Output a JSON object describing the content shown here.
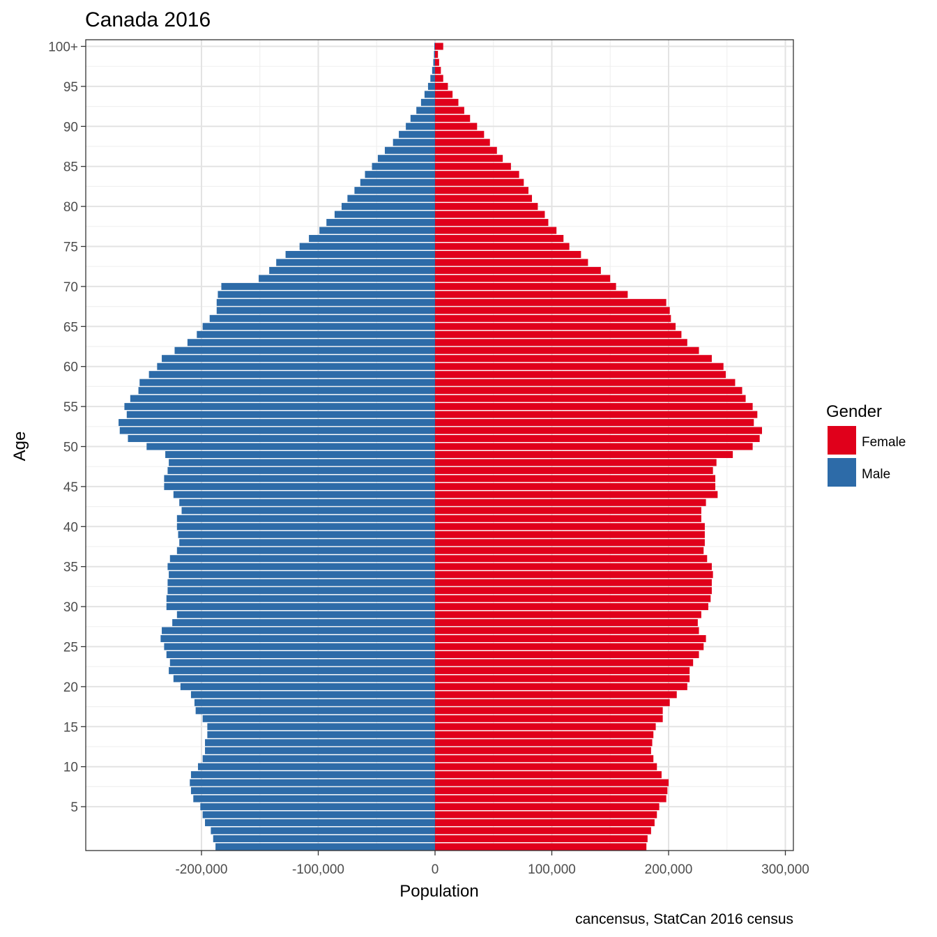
{
  "chart_data": {
    "type": "bar",
    "orientation": "horizontal",
    "title": "Canada 2016",
    "xlabel": "Population",
    "ylabel": "Age",
    "caption": "cancensus, StatCan 2016 census",
    "xlim": [
      -290000,
      310000
    ],
    "x_ticks": [
      -200000,
      -100000,
      0,
      100000,
      200000,
      300000
    ],
    "x_tick_labels": [
      "-200,000",
      "-100,000",
      "0",
      "100,000",
      "200,000",
      "300,000"
    ],
    "y_ticks": [
      5,
      10,
      15,
      20,
      25,
      30,
      35,
      40,
      45,
      50,
      55,
      60,
      65,
      70,
      75,
      80,
      85,
      90,
      95,
      100
    ],
    "y_tick_labels": [
      "5",
      "10",
      "15",
      "20",
      "25",
      "30",
      "35",
      "40",
      "45",
      "50",
      "55",
      "60",
      "65",
      "70",
      "75",
      "80",
      "85",
      "90",
      "95",
      "100+"
    ],
    "grid": true,
    "legend": {
      "title": "Gender",
      "position": "right",
      "entries": [
        "Female",
        "Male"
      ]
    },
    "categories": [
      0,
      1,
      2,
      3,
      4,
      5,
      6,
      7,
      8,
      9,
      10,
      11,
      12,
      13,
      14,
      15,
      16,
      17,
      18,
      19,
      20,
      21,
      22,
      23,
      24,
      25,
      26,
      27,
      28,
      29,
      30,
      31,
      32,
      33,
      34,
      35,
      36,
      37,
      38,
      39,
      40,
      41,
      42,
      43,
      44,
      45,
      46,
      47,
      48,
      49,
      50,
      51,
      52,
      53,
      54,
      55,
      56,
      57,
      58,
      59,
      60,
      61,
      62,
      63,
      64,
      65,
      66,
      67,
      68,
      69,
      70,
      71,
      72,
      73,
      74,
      75,
      76,
      77,
      78,
      79,
      80,
      81,
      82,
      83,
      84,
      85,
      86,
      87,
      88,
      89,
      90,
      91,
      92,
      93,
      94,
      95,
      96,
      97,
      98,
      99,
      100
    ],
    "series": [
      {
        "name": "Female",
        "color": "#e0001b",
        "values": [
          181000,
          182000,
          185000,
          188000,
          190000,
          192000,
          198000,
          199000,
          200000,
          194000,
          190000,
          187000,
          185000,
          186000,
          187000,
          189000,
          195000,
          195000,
          201000,
          207000,
          216000,
          218000,
          218000,
          221000,
          226000,
          230000,
          232000,
          226000,
          225000,
          228000,
          234000,
          236000,
          237000,
          237000,
          238000,
          237000,
          233000,
          230000,
          231000,
          231000,
          231000,
          228000,
          228000,
          232000,
          242000,
          240000,
          240000,
          238000,
          241000,
          255000,
          272000,
          278000,
          280000,
          273000,
          276000,
          272000,
          266000,
          263000,
          257000,
          249000,
          247000,
          237000,
          226000,
          216000,
          211000,
          206000,
          202000,
          201000,
          198000,
          165000,
          155000,
          150000,
          142000,
          131000,
          125000,
          115000,
          110000,
          104000,
          97000,
          94000,
          88000,
          83000,
          80000,
          76000,
          72000,
          65000,
          58000,
          53000,
          47000,
          42000,
          36000,
          30000,
          25000,
          20000,
          15000,
          11000,
          7000,
          5000,
          3500,
          2500,
          7000
        ]
      },
      {
        "name": "Male",
        "color": "#2d6ba8",
        "values": [
          -188000,
          -190000,
          -192000,
          -197000,
          -199000,
          -201000,
          -207000,
          -209000,
          -210000,
          -209000,
          -203000,
          -199000,
          -197000,
          -197000,
          -195000,
          -195000,
          -199000,
          -205000,
          -206000,
          -209000,
          -218000,
          -224000,
          -228000,
          -227000,
          -230000,
          -232000,
          -235000,
          -234000,
          -225000,
          -221000,
          -230000,
          -230000,
          -229000,
          -229000,
          -228000,
          -229000,
          -227000,
          -221000,
          -219000,
          -220000,
          -221000,
          -221000,
          -217000,
          -219000,
          -224000,
          -232000,
          -232000,
          -229000,
          -228000,
          -231000,
          -247000,
          -263000,
          -270000,
          -271000,
          -264000,
          -266000,
          -261000,
          -254000,
          -253000,
          -245000,
          -238000,
          -234000,
          -223000,
          -212000,
          -204000,
          -199000,
          -193000,
          -187000,
          -187000,
          -186000,
          -183000,
          -151000,
          -142000,
          -136000,
          -128000,
          -116000,
          -108000,
          -99000,
          -93000,
          -86000,
          -80000,
          -75000,
          -69000,
          -64000,
          -60000,
          -54000,
          -49000,
          -43000,
          -36000,
          -31000,
          -25000,
          -21000,
          -16000,
          -12000,
          -9000,
          -6000,
          -4000,
          -2500,
          -1500,
          -900,
          -600
        ]
      }
    ]
  }
}
